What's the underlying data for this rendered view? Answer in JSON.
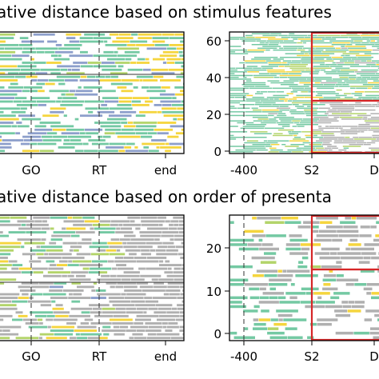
{
  "chart_data": [
    {
      "type": "raster",
      "title": "ative distance based on stimulus features",
      "x_ticks": [
        "GO",
        "RT",
        "end"
      ],
      "y_ticks": [],
      "grid": false,
      "row_count": 34,
      "series": [
        {
          "name": "",
          "color": "#74c9a3"
        },
        {
          "name": "",
          "color": "#f5d53e"
        },
        {
          "name": "",
          "color": "#8d9fcb"
        },
        {
          "name": "",
          "color": "#b3d46a"
        },
        {
          "name": "",
          "color": "#b0b0b0"
        }
      ]
    },
    {
      "type": "raster",
      "x_ticks": [
        "-400",
        "S2",
        "D"
      ],
      "y_ticks": [
        "0",
        "20",
        "40",
        "60"
      ],
      "ylim": [
        0,
        65
      ],
      "grid": false,
      "row_count": 66,
      "boxes": [
        {
          "x_from": "S2",
          "y_from": 28,
          "y_to": 65
        },
        {
          "x_from": "S2",
          "y_from": 0,
          "y_to": 28
        }
      ],
      "series": [
        {
          "name": "",
          "color": "#74c9a3"
        },
        {
          "name": "",
          "color": "#f5d53e"
        },
        {
          "name": "",
          "color": "#b3d46a"
        },
        {
          "name": "",
          "color": "#b0b0b0"
        }
      ]
    },
    {
      "type": "raster",
      "title": "ative distance based on order of presenta",
      "x_ticks": [
        "GO",
        "RT",
        "end"
      ],
      "y_ticks": [],
      "grid": false,
      "row_count": 34,
      "series": [
        {
          "name": "",
          "color": "#b0b0b0"
        },
        {
          "name": "",
          "color": "#74c9a3"
        },
        {
          "name": "",
          "color": "#b3d46a"
        },
        {
          "name": "",
          "color": "#f5d53e"
        },
        {
          "name": "",
          "color": "#8d9fcb"
        }
      ]
    },
    {
      "type": "raster",
      "x_ticks": [
        "-400",
        "S2",
        "D"
      ],
      "y_ticks": [
        "0",
        "10",
        "20"
      ],
      "ylim": [
        0,
        27
      ],
      "grid": false,
      "row_count": 28,
      "boxes": [
        {
          "x_from": "S2",
          "y_from": 14.5,
          "y_to": 27
        },
        {
          "x_from": "S2",
          "y_from": 0,
          "y_to": 14.5
        }
      ],
      "series": [
        {
          "name": "",
          "color": "#b0b0b0"
        },
        {
          "name": "",
          "color": "#74c9a3"
        },
        {
          "name": "",
          "color": "#f5d53e"
        },
        {
          "name": "",
          "color": "#b3d46a"
        }
      ]
    }
  ],
  "colors": {
    "teal": "#74c9a3",
    "yellow": "#f5d53e",
    "slate_blue": "#8d9fcb",
    "lime": "#b3d46a",
    "gray": "#b0b0b0",
    "box_red": "#d62728"
  }
}
